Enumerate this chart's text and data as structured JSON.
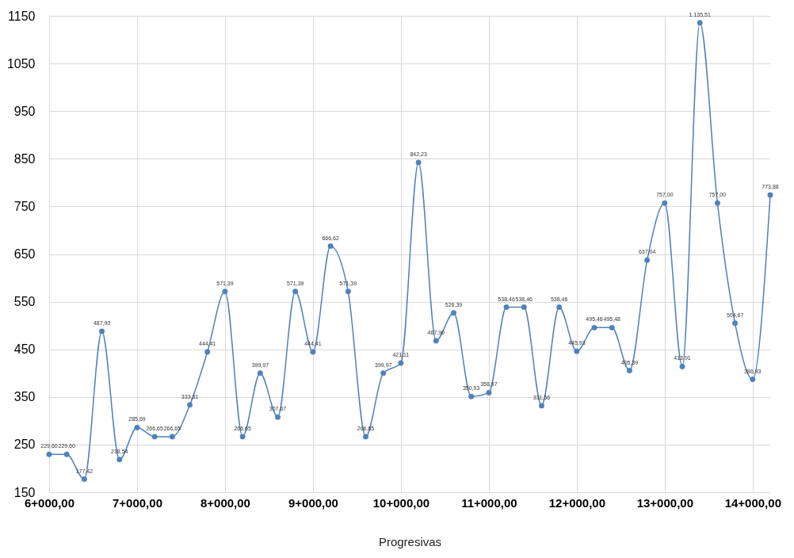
{
  "chart_data": {
    "type": "line",
    "xlabel": "Progresivas",
    "categories": [
      "6+000,00",
      null,
      null,
      null,
      null,
      "7+000,00",
      null,
      null,
      null,
      null,
      "8+000,00",
      null,
      null,
      null,
      null,
      "9+000,00",
      null,
      null,
      null,
      null,
      "10+000,00",
      null,
      null,
      null,
      null,
      "11+000,00",
      null,
      null,
      null,
      null,
      "12+000,00",
      null,
      null,
      null,
      null,
      "13+000,00",
      null,
      null,
      null,
      null,
      "14+000,00",
      null
    ],
    "series": [
      {
        "color": "#4f81bd",
        "values": [
          229.6,
          229.6,
          177.42,
          487.9,
          218.54,
          285.69,
          266.65,
          266.65,
          333.31,
          444.41,
          571.39,
          266.65,
          399.97,
          307.67,
          571.39,
          444.41,
          666.62,
          571.39,
          266.65,
          399.97,
          421.11,
          842.23,
          467.9,
          526.39,
          350.93,
          358.97,
          538.46,
          538.46,
          331.56,
          538.46,
          445.93,
          495.48,
          495.48,
          405.39,
          637.04,
          757.0,
          413.91,
          1135.51,
          757.0,
          504.67,
          386.93,
          773.88
        ],
        "value_labels": [
          "229,60",
          "229,60",
          "177,42",
          "487,90",
          "218,54",
          "285,69",
          "266,65",
          "266,65",
          "333,31",
          "444,41",
          "571,39",
          "266,65",
          "399,97",
          "307,67",
          "571,39",
          "444,41",
          "666,62",
          "571,39",
          "266,65",
          "399,97",
          "421,11",
          "842,23",
          "467,90",
          "526,39",
          "350,93",
          "358,97",
          "538,46",
          "538,46",
          "331,56",
          "538,46",
          "445,93",
          "495,48",
          "495,48",
          "405,39",
          "637,04",
          "757,00",
          "413,91",
          "1.135,51",
          "757,00",
          "504,67",
          "386,93",
          "773,88"
        ]
      }
    ],
    "ylim": [
      150,
      1150
    ],
    "yticks": [
      150,
      250,
      350,
      450,
      550,
      650,
      750,
      850,
      950,
      1050,
      1150
    ],
    "grid": true,
    "marker": "circle",
    "line_style": "solid"
  }
}
